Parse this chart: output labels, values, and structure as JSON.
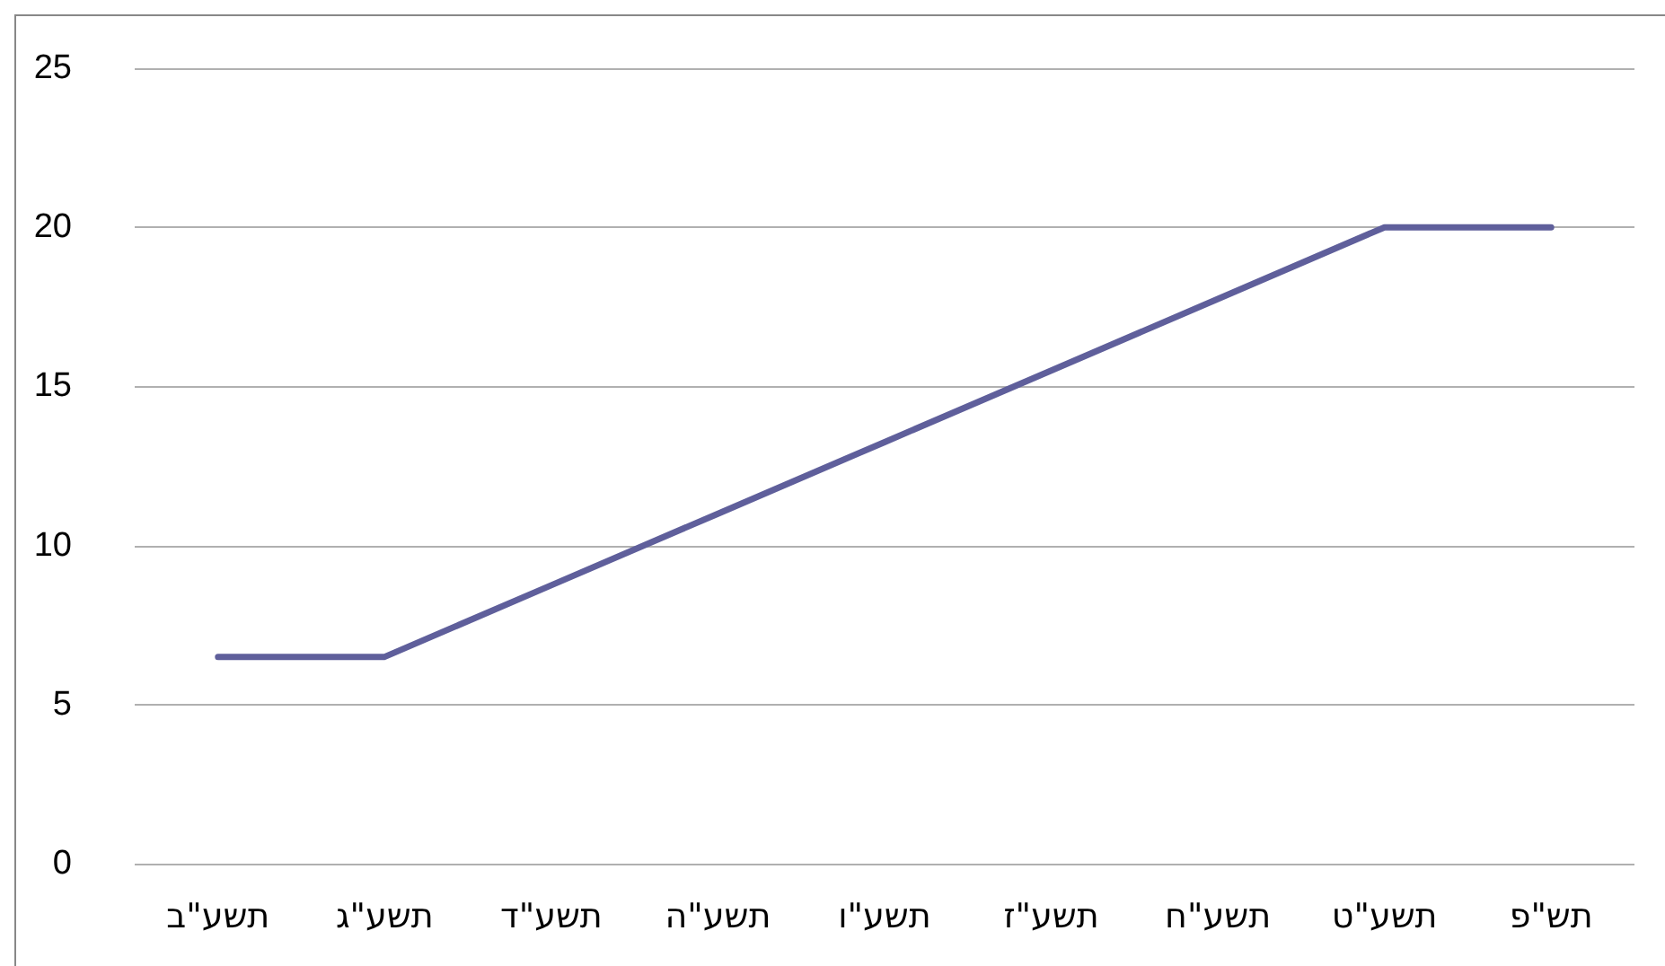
{
  "chart_data": {
    "type": "line",
    "categories": [
      "תשע\"ב",
      "תשע\"ג",
      "תשע\"ד",
      "תשע\"ה",
      "תשע\"ו",
      "תשע\"ז",
      "תשע\"ח",
      "תשע\"ט",
      "תש\"פ"
    ],
    "series": [
      {
        "color": "#5f5f9b",
        "values": [
          6.5,
          6.5,
          8.75,
          11,
          13.25,
          15.5,
          17.75,
          20,
          20
        ]
      }
    ],
    "ylim": [
      0,
      25
    ],
    "yticks": [
      0,
      5,
      10,
      15,
      20,
      25
    ],
    "grid": "y",
    "marker": "none",
    "line_style": "solid"
  }
}
